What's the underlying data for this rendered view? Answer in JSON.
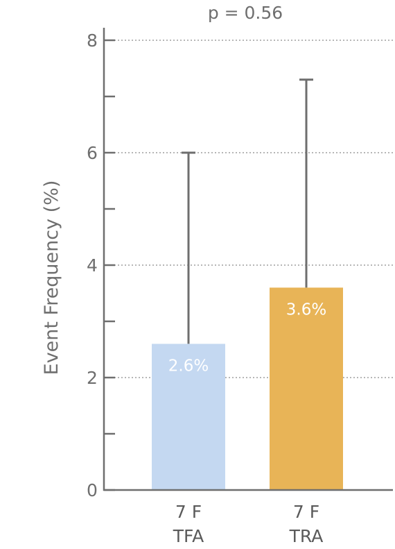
{
  "chart_data": {
    "type": "bar",
    "annotation": "p = 0.56",
    "ylabel": "Event Frequency (%)",
    "ylim": [
      0,
      8
    ],
    "yticks": [
      0,
      2,
      4,
      6,
      8
    ],
    "minor_yticks": [
      1,
      3,
      5,
      7
    ],
    "grid": "dotted-horizontal",
    "categories": [
      {
        "line1": "7 F",
        "line2": "TFA"
      },
      {
        "line1": "7 F",
        "line2": "TRA"
      }
    ],
    "values": [
      2.6,
      3.6
    ],
    "error_upper": [
      6.0,
      7.3
    ],
    "data_labels": [
      "2.6%",
      "3.6%"
    ],
    "colors": [
      "#c4d8f1",
      "#e8b457"
    ],
    "axis_color": "#6e6e6e",
    "grid_color": "#8a8a8a"
  }
}
